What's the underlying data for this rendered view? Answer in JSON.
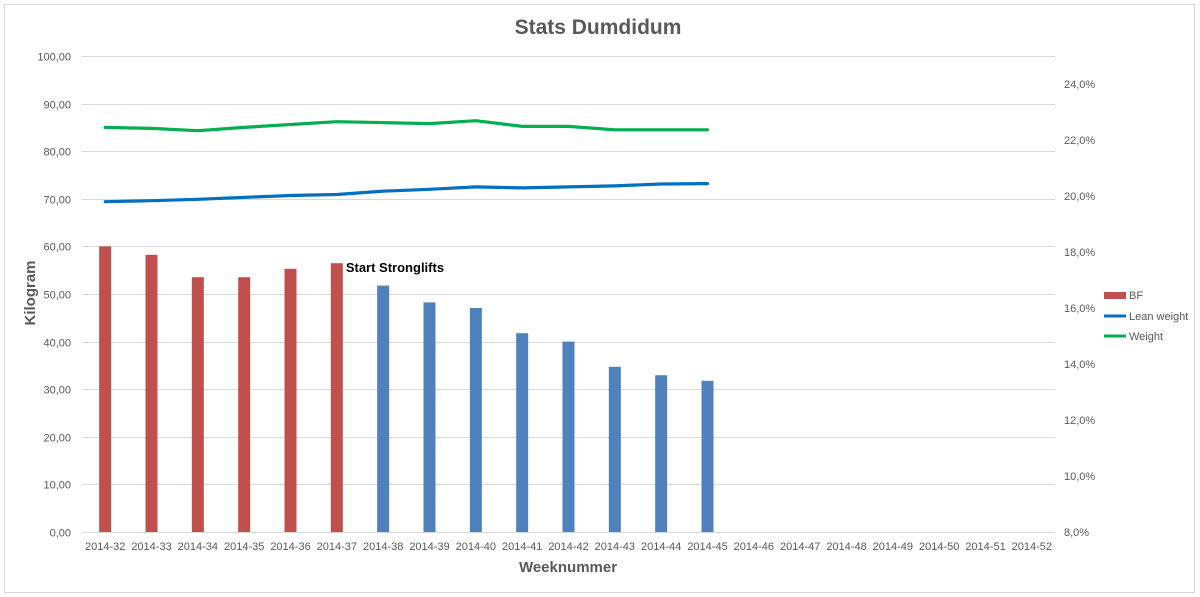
{
  "chart_data": {
    "type": "bar",
    "title": "Stats Dumdidum",
    "xlabel": "Weeknummer",
    "ylabel": "Kilogram",
    "ylim": [
      0,
      100
    ],
    "y2lim": [
      8,
      25
    ],
    "y_ticks": [
      "0,00",
      "10,00",
      "20,00",
      "30,00",
      "40,00",
      "50,00",
      "60,00",
      "70,00",
      "80,00",
      "90,00",
      "100,00"
    ],
    "y2_ticks": [
      "8,0%",
      "10,0%",
      "12,0%",
      "14,0%",
      "16,0%",
      "18,0%",
      "20,0%",
      "22,0%",
      "24,0%"
    ],
    "categories": [
      "2014-32",
      "2014-33",
      "2014-34",
      "2014-35",
      "2014-36",
      "2014-37",
      "2014-38",
      "2014-39",
      "2014-40",
      "2014-41",
      "2014-42",
      "2014-43",
      "2014-44",
      "2014-45",
      "2014-46",
      "2014-47",
      "2014-48",
      "2014-49",
      "2014-50",
      "2014-51",
      "2014-52"
    ],
    "series": [
      {
        "name": "BF",
        "type": "bar",
        "axis": "right",
        "unit": "percent",
        "values": [
          18.2,
          17.9,
          17.1,
          17.1,
          17.4,
          17.6,
          16.8,
          16.2,
          16.0,
          15.1,
          14.8,
          13.9,
          13.6,
          13.4,
          null,
          null,
          null,
          null,
          null,
          null,
          null
        ],
        "colors": [
          "#c0504d",
          "#c0504d",
          "#c0504d",
          "#c0504d",
          "#c0504d",
          "#c0504d",
          "#4f81bd",
          "#4f81bd",
          "#4f81bd",
          "#4f81bd",
          "#4f81bd",
          "#4f81bd",
          "#4f81bd",
          "#4f81bd"
        ]
      },
      {
        "name": "Lean weight",
        "type": "line",
        "axis": "left",
        "color": "#0070c0",
        "values": [
          69.4,
          69.6,
          69.9,
          70.3,
          70.7,
          70.9,
          71.6,
          72.0,
          72.5,
          72.3,
          72.5,
          72.7,
          73.1,
          73.2,
          null,
          null,
          null,
          null,
          null,
          null,
          null
        ]
      },
      {
        "name": "Weight",
        "type": "line",
        "axis": "left",
        "color": "#00b050",
        "values": [
          85.0,
          84.8,
          84.3,
          85.0,
          85.6,
          86.2,
          86.0,
          85.8,
          86.4,
          85.2,
          85.2,
          84.5,
          84.5,
          84.5,
          null,
          null,
          null,
          null,
          null,
          null,
          null
        ]
      }
    ],
    "annotations": [
      {
        "text": "Start Stronglifts",
        "category": "2014-37"
      }
    ],
    "legend": {
      "placement": "right",
      "bf_swatch_color": "#c0504d"
    },
    "grid": true
  }
}
